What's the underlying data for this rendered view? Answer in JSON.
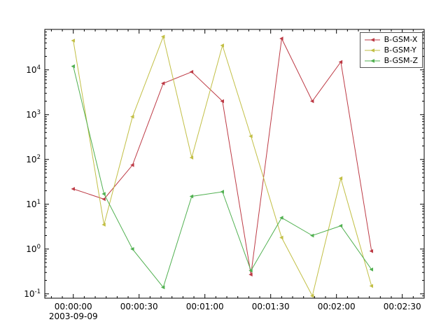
{
  "figure": {
    "background": "#ffffff",
    "axes_color": "#000000"
  },
  "chart_data": {
    "type": "line",
    "title": "",
    "xlabel": "",
    "ylabel": "",
    "y_scale": "log",
    "xlim_seconds": [
      -13,
      160
    ],
    "ylim": [
      0.08,
      80000
    ],
    "x_tick_seconds": [
      0,
      30,
      60,
      90,
      120,
      150
    ],
    "x_tick_labels": [
      "00:00:00",
      "00:00:30",
      "00:01:00",
      "00:01:30",
      "00:02:00",
      "00:02:30"
    ],
    "x_minor_step_seconds": 5,
    "x_date_label": "2003-09-09",
    "y_tick_exponents": [
      -1,
      0,
      1,
      2,
      3,
      4
    ],
    "legend_position": "upper right",
    "grid": false,
    "x_seconds": [
      0,
      14,
      27,
      41,
      54,
      68,
      81,
      95,
      109,
      122,
      136
    ],
    "series": [
      {
        "name": "B-GSM-X",
        "color": "#bd3a45",
        "values": [
          22,
          13,
          75,
          5000,
          9000,
          2000,
          0.27,
          50000,
          2000,
          15000,
          0.9
        ]
      },
      {
        "name": "B-GSM-Y",
        "color": "#c2bf45",
        "values": [
          45000,
          3.5,
          900,
          55000,
          110,
          35000,
          330,
          1.8,
          0.09,
          38,
          0.15
        ]
      },
      {
        "name": "B-GSM-Z",
        "color": "#50b050",
        "values": [
          12000,
          17,
          1.0,
          0.14,
          15,
          19,
          0.33,
          5,
          2,
          3.3,
          0.35
        ]
      }
    ]
  }
}
